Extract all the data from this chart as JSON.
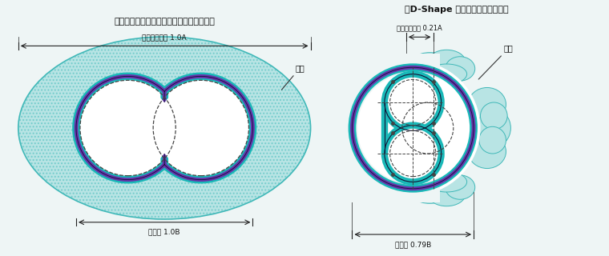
{
  "title_left": "》円形トンネル同士の接続（従来工法）》",
  "title_right": "》D-Shape シールド工法の場合》",
  "bg_color": "#eef5f5",
  "frozen_fill": "#b8e4e4",
  "frozen_edge": "#40b8b8",
  "lining_teal": "#1ab8b8",
  "lining_purple": "#6633aa",
  "lining_dark": "#1a1a2e",
  "dashed_color": "#444444",
  "dim_color": "#222222",
  "label_left_kirihiro": "切り拡げ範囲 1.0A",
  "label_left_senyou": "占用幅 1.0B",
  "label_left_frozen": "凍土",
  "label_right_kirihiro": "切り拡げ範囲 0.21A",
  "label_right_senyou": "占用幅 0.79B",
  "label_right_frozen": "凍土"
}
